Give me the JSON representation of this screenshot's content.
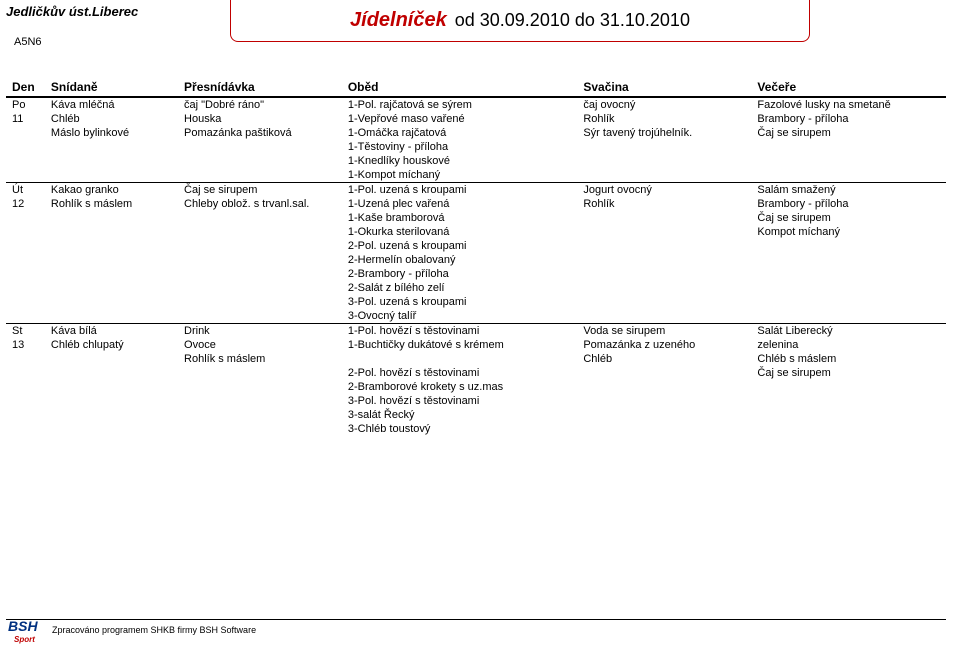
{
  "header": {
    "org": "Jedličkův úst.Liberec",
    "subcode": "A5N6",
    "title": "Jídelníček",
    "range": "od 30.09.2010 do 31.10.2010"
  },
  "columns": {
    "day": "Den",
    "breakfast": "Snídaně",
    "snack1": "Přesnídávka",
    "lunch": "Oběd",
    "snack2": "Svačina",
    "dinner": "Večeře"
  },
  "days": [
    {
      "abbr": "Po",
      "num": "11",
      "rows": [
        [
          "Káva mléčná",
          "čaj \"Dobré ráno\"",
          "1-Pol. rajčatová se sýrem",
          "čaj ovocný",
          "Fazolové lusky na smetaně"
        ],
        [
          "Chléb",
          "Houska",
          "1-Vepřové maso vařené",
          "Rohlík",
          "Brambory - příloha"
        ],
        [
          "Máslo bylinkové",
          "Pomazánka paštiková",
          "1-Omáčka rajčatová",
          "Sýr tavený trojúhelník.",
          "Čaj se sirupem"
        ],
        [
          "",
          "",
          "1-Těstoviny - příloha",
          "",
          ""
        ],
        [
          "",
          "",
          "1-Knedlíky houskové",
          "",
          ""
        ],
        [
          "",
          "",
          "1-Kompot míchaný",
          "",
          ""
        ]
      ]
    },
    {
      "abbr": "Út",
      "num": "12",
      "rows": [
        [
          "Kakao granko",
          "Čaj se sirupem",
          "1-Pol. uzená s kroupami",
          "Jogurt ovocný",
          "Salám smažený"
        ],
        [
          "Rohlík s máslem",
          "Chleby oblož. s trvanl.sal.",
          "1-Uzená plec vařená",
          "Rohlík",
          "Brambory - příloha"
        ],
        [
          "",
          "",
          "1-Kaše bramborová",
          "",
          "Čaj se sirupem"
        ],
        [
          "",
          "",
          "1-Okurka sterilovaná",
          "",
          "Kompot míchaný"
        ],
        [
          "",
          "",
          "2-Pol. uzená s kroupami",
          "",
          ""
        ],
        [
          "",
          "",
          "2-Hermelín obalovaný",
          "",
          ""
        ],
        [
          "",
          "",
          "2-Brambory - příloha",
          "",
          ""
        ],
        [
          "",
          "",
          "2-Salát z bílého zelí",
          "",
          ""
        ],
        [
          "",
          "",
          "3-Pol. uzená s kroupami",
          "",
          ""
        ],
        [
          "",
          "",
          "3-Ovocný talíř",
          "",
          ""
        ]
      ]
    },
    {
      "abbr": "St",
      "num": "13",
      "rows": [
        [
          "Káva bílá",
          "Drink",
          "1-Pol. hovězí s těstovinami",
          "Voda se sirupem",
          "Salát Liberecký"
        ],
        [
          "Chléb chlupatý",
          "Ovoce",
          "1-Buchtičky dukátové s krémem",
          "Pomazánka z uzeného",
          "zelenina"
        ],
        [
          "",
          "Rohlík s máslem",
          "",
          "Chléb",
          "Chléb s máslem"
        ],
        [
          "",
          "",
          "2-Pol. hovězí s těstovinami",
          "",
          "Čaj se sirupem"
        ],
        [
          "",
          "",
          "2-Bramborové krokety s uz.mas",
          "",
          ""
        ],
        [
          "",
          "",
          "3-Pol. hovězí s těstovinami",
          "",
          ""
        ],
        [
          "",
          "",
          "3-salát Řecký",
          "",
          ""
        ],
        [
          "",
          "",
          "3-Chléb toustový",
          "",
          ""
        ]
      ]
    }
  ],
  "footer": {
    "logo_main": "BSH",
    "logo_sub": "Sport",
    "text": "Zpracováno programem SHKB firmy BSH Software"
  },
  "colors": {
    "accent": "#c00000",
    "logo_blue": "#003080"
  }
}
